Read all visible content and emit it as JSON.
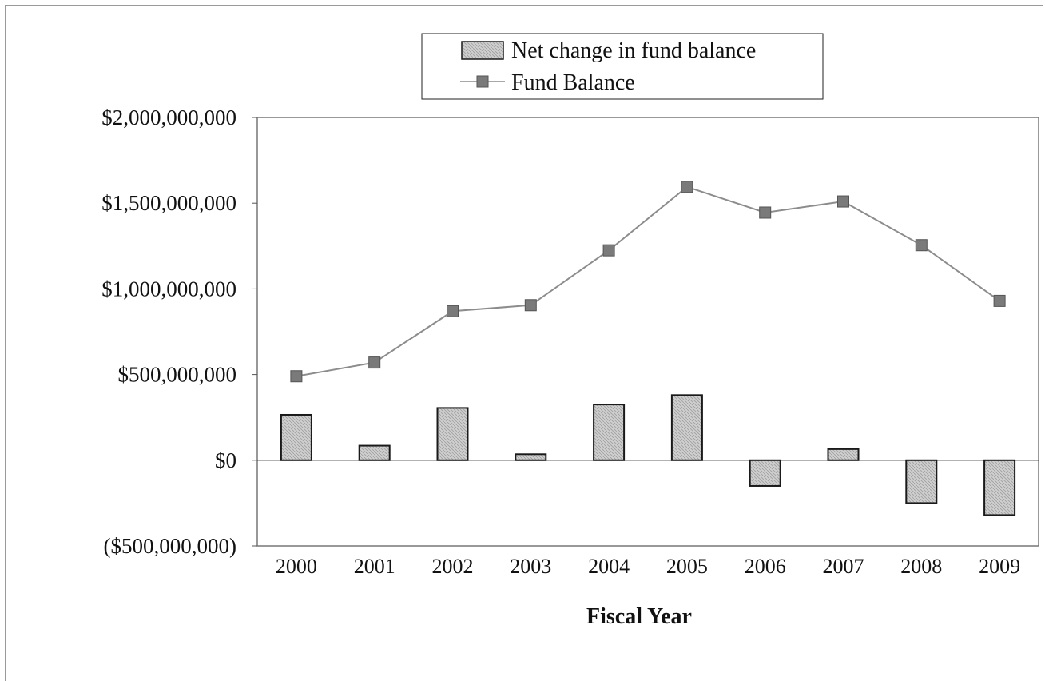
{
  "chart_data": {
    "type": "bar",
    "title": "",
    "xlabel": "Fiscal Year",
    "ylabel": "",
    "categories": [
      "2000",
      "2001",
      "2002",
      "2003",
      "2004",
      "2005",
      "2006",
      "2007",
      "2008",
      "2009"
    ],
    "ylim": [
      -500000000,
      2000000000
    ],
    "yticks": [
      -500000000,
      0,
      500000000,
      1000000000,
      1500000000,
      2000000000
    ],
    "ytick_labels": [
      "($500,000,000)",
      "$0",
      "$500,000,000",
      "$1,000,000,000",
      "$1,500,000,000",
      "$2,000,000,000"
    ],
    "grid": false,
    "legend_placement": "top-center",
    "series": [
      {
        "name": "Net change in fund balance",
        "type": "bar",
        "values": [
          265000000,
          85000000,
          305000000,
          35000000,
          325000000,
          380000000,
          -150000000,
          65000000,
          -250000000,
          -320000000
        ]
      },
      {
        "name": "Fund Balance",
        "type": "line",
        "values": [
          490000000,
          570000000,
          870000000,
          905000000,
          1225000000,
          1595000000,
          1445000000,
          1510000000,
          1255000000,
          930000000
        ]
      }
    ],
    "colors": {
      "bar_fill": "#c9c9c9",
      "bar_stroke": "#1a1a1a",
      "line": "#8c8c8c",
      "marker": "#7a7a7a"
    }
  }
}
